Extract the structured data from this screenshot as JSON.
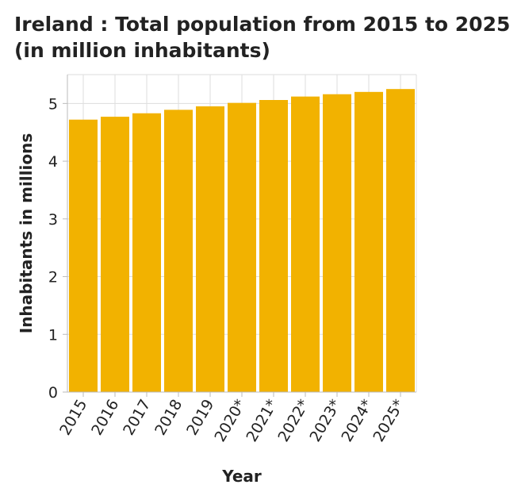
{
  "chart_data": {
    "type": "bar",
    "title": "Ireland : Total population from 2015 to 2025 (in million inhabitants)",
    "xlabel": "Year",
    "ylabel": "Inhabitants in millions",
    "categories": [
      "2015",
      "2016",
      "2017",
      "2018",
      "2019",
      "2020*",
      "2021*",
      "2022*",
      "2023*",
      "2024*",
      "2025*"
    ],
    "values": [
      4.72,
      4.77,
      4.83,
      4.89,
      4.95,
      5.01,
      5.06,
      5.12,
      5.16,
      5.2,
      5.25
    ],
    "ylim": [
      0,
      5.5
    ],
    "yticks": [
      0,
      1,
      2,
      3,
      4,
      5
    ],
    "grid": true,
    "bar_color": "#f2b200",
    "grid_color": "#dddddd",
    "axis_color": "#bbbbbb"
  }
}
